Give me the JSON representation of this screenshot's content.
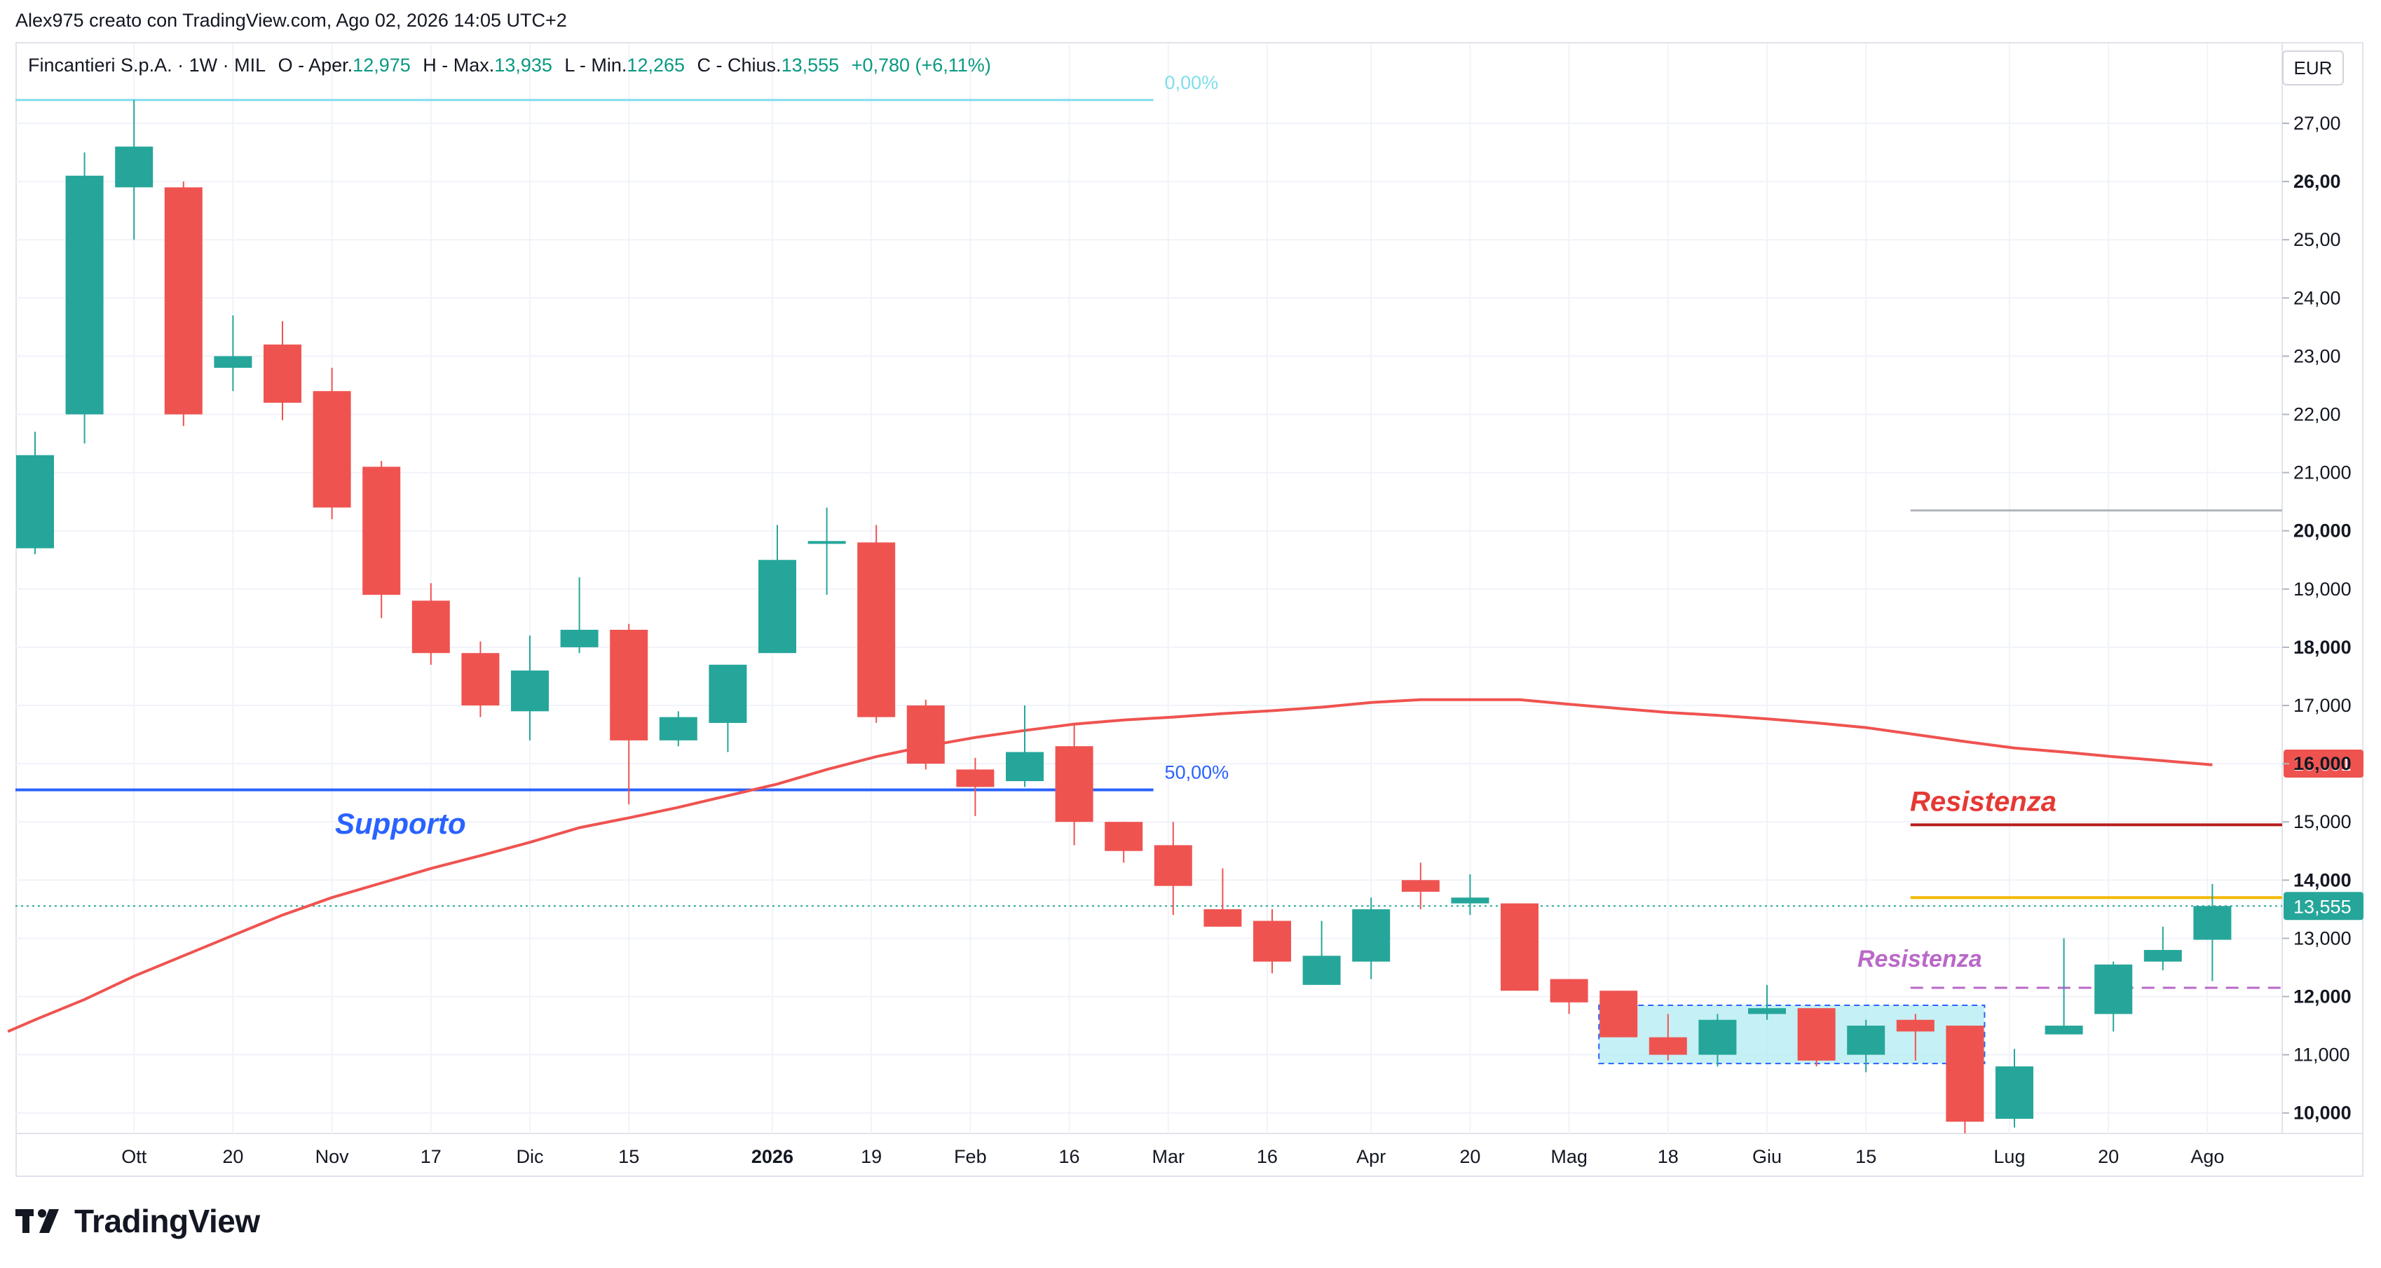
{
  "header": {
    "author": "Alex975 creato con TradingView.com, Ago 02, 2026 14:05 UTC+2"
  },
  "legend": {
    "symbol": "Fincantieri S.p.A. · 1W · MIL",
    "open_label": "O - Aper.",
    "open": "12,975",
    "high_label": "H - Max.",
    "high": "13,935",
    "low_label": "L - Min.",
    "low": "12,265",
    "close_label": "C - Chius.",
    "close": "13,555",
    "change": "+0,780 (+6,11%)"
  },
  "currency_button": "EUR",
  "brand": {
    "name": "TradingView",
    "logo_text": "17"
  },
  "colors": {
    "up": "#26a69a",
    "down": "#ef5350",
    "ma": "#ef5350",
    "support": "#2962ff",
    "resistance_red": "#b71c1c",
    "resistance_orange": "#f5b800",
    "resistance_purple": "#ba68c8",
    "fib0": "#80deea",
    "range_box": "#b2ebf2",
    "price_tag": "#26a69a",
    "ma_tag": "#ef5350"
  },
  "chart_data": {
    "type": "candlestick",
    "period": "1W",
    "symbol": "Fincantieri S.p.A.",
    "exchange": "MIL",
    "currency": "EUR",
    "ylim": [
      9.55,
      27.8
    ],
    "y_ticks": [
      "10,000",
      "11,000",
      "12,000",
      "13,000",
      "14,000",
      "15,000",
      "16,000",
      "17,000",
      "18,000",
      "19,000",
      "20,000",
      "21,000",
      "22,00",
      "23,00",
      "24,00",
      "25,00",
      "26,00",
      "27,00"
    ],
    "y_tick_values": [
      10,
      11,
      12,
      13,
      14,
      15,
      16,
      17,
      18,
      19,
      20,
      21,
      22,
      23,
      24,
      25,
      26,
      27
    ],
    "bold_ticks": [
      10,
      12,
      14,
      16,
      18,
      20,
      26
    ],
    "x_ticks": [
      {
        "label": "Ott",
        "idx": 2
      },
      {
        "label": "20",
        "idx": 4
      },
      {
        "label": "Nov",
        "idx": 6
      },
      {
        "label": "17",
        "idx": 8
      },
      {
        "label": "Dic",
        "idx": 10
      },
      {
        "label": "15",
        "idx": 12
      },
      {
        "label": "2026",
        "idx": 14.9,
        "bold": true
      },
      {
        "label": "19",
        "idx": 16.9
      },
      {
        "label": "Feb",
        "idx": 18.9
      },
      {
        "label": "16",
        "idx": 20.9
      },
      {
        "label": "Mar",
        "idx": 22.9
      },
      {
        "label": "16",
        "idx": 24.9
      },
      {
        "label": "Apr",
        "idx": 27
      },
      {
        "label": "20",
        "idx": 29
      },
      {
        "label": "Mag",
        "idx": 31
      },
      {
        "label": "18",
        "idx": 33
      },
      {
        "label": "Giu",
        "idx": 35
      },
      {
        "label": "15",
        "idx": 37
      },
      {
        "label": "Lug",
        "idx": 39.9
      },
      {
        "label": "20",
        "idx": 41.9
      },
      {
        "label": "Ago",
        "idx": 43.9
      }
    ],
    "candles": [
      {
        "o": 19.7,
        "h": 21.7,
        "l": 19.6,
        "c": 21.3
      },
      {
        "o": 22.0,
        "h": 26.5,
        "l": 21.5,
        "c": 26.1
      },
      {
        "o": 25.9,
        "h": 27.4,
        "l": 25.0,
        "c": 26.6
      },
      {
        "o": 25.9,
        "h": 26.0,
        "l": 21.8,
        "c": 22.0
      },
      {
        "o": 22.8,
        "h": 23.7,
        "l": 22.4,
        "c": 23.0
      },
      {
        "o": 23.2,
        "h": 23.6,
        "l": 21.9,
        "c": 22.2
      },
      {
        "o": 22.4,
        "h": 22.8,
        "l": 20.2,
        "c": 20.4
      },
      {
        "o": 21.1,
        "h": 21.2,
        "l": 18.5,
        "c": 18.9
      },
      {
        "o": 18.8,
        "h": 19.1,
        "l": 17.7,
        "c": 17.9
      },
      {
        "o": 17.9,
        "h": 18.1,
        "l": 16.8,
        "c": 17.0
      },
      {
        "o": 16.9,
        "h": 18.2,
        "l": 16.4,
        "c": 17.6
      },
      {
        "o": 18.0,
        "h": 19.2,
        "l": 17.9,
        "c": 18.3
      },
      {
        "o": 18.3,
        "h": 18.4,
        "l": 15.3,
        "c": 16.4
      },
      {
        "o": 16.4,
        "h": 16.9,
        "l": 16.3,
        "c": 16.8
      },
      {
        "o": 16.7,
        "h": 17.6,
        "l": 16.2,
        "c": 17.7
      },
      {
        "o": 17.9,
        "h": 20.1,
        "l": 17.9,
        "c": 19.5
      },
      {
        "o": 19.8,
        "h": 20.4,
        "l": 18.9,
        "c": 19.8
      },
      {
        "o": 19.8,
        "h": 20.1,
        "l": 16.7,
        "c": 16.8
      },
      {
        "o": 17.0,
        "h": 17.1,
        "l": 15.9,
        "c": 16.0
      },
      {
        "o": 15.9,
        "h": 16.1,
        "l": 15.1,
        "c": 15.6
      },
      {
        "o": 15.7,
        "h": 17.0,
        "l": 15.6,
        "c": 16.2
      },
      {
        "o": 16.3,
        "h": 16.7,
        "l": 14.6,
        "c": 15.0
      },
      {
        "o": 15.0,
        "h": 15.0,
        "l": 14.3,
        "c": 14.5
      },
      {
        "o": 14.6,
        "h": 15.0,
        "l": 13.4,
        "c": 13.9
      },
      {
        "o": 13.5,
        "h": 14.2,
        "l": 13.2,
        "c": 13.2
      },
      {
        "o": 13.3,
        "h": 13.5,
        "l": 12.4,
        "c": 12.6
      },
      {
        "o": 12.2,
        "h": 13.3,
        "l": 12.2,
        "c": 12.7
      },
      {
        "o": 12.6,
        "h": 13.7,
        "l": 12.3,
        "c": 13.5
      },
      {
        "o": 14.0,
        "h": 14.3,
        "l": 13.5,
        "c": 13.8
      },
      {
        "o": 13.6,
        "h": 14.1,
        "l": 13.4,
        "c": 13.7
      },
      {
        "o": 13.6,
        "h": 13.6,
        "l": 12.1,
        "c": 12.1
      },
      {
        "o": 12.3,
        "h": 12.3,
        "l": 11.7,
        "c": 11.9
      },
      {
        "o": 12.1,
        "h": 12.1,
        "l": 11.3,
        "c": 11.3
      },
      {
        "o": 11.3,
        "h": 11.7,
        "l": 10.9,
        "c": 11.0
      },
      {
        "o": 11.0,
        "h": 11.7,
        "l": 10.8,
        "c": 11.6
      },
      {
        "o": 11.7,
        "h": 12.2,
        "l": 11.6,
        "c": 11.8
      },
      {
        "o": 11.8,
        "h": 11.8,
        "l": 10.8,
        "c": 10.9
      },
      {
        "o": 11.0,
        "h": 11.6,
        "l": 10.7,
        "c": 11.5
      },
      {
        "o": 11.6,
        "h": 11.7,
        "l": 10.9,
        "c": 11.4
      },
      {
        "o": 11.5,
        "h": 11.5,
        "l": 9.65,
        "c": 9.85
      },
      {
        "o": 9.9,
        "h": 11.1,
        "l": 9.75,
        "c": 10.8
      },
      {
        "o": 11.35,
        "h": 13.0,
        "l": 11.35,
        "c": 11.5
      },
      {
        "o": 11.7,
        "h": 12.6,
        "l": 11.4,
        "c": 12.55
      },
      {
        "o": 12.6,
        "h": 13.2,
        "l": 12.45,
        "c": 12.8
      },
      {
        "o": 12.975,
        "h": 13.935,
        "l": 12.265,
        "c": 13.555
      }
    ],
    "moving_average": [
      {
        "idx": -0.55,
        "v": 11.4
      },
      {
        "idx": 0,
        "v": 11.6
      },
      {
        "idx": 1,
        "v": 11.95
      },
      {
        "idx": 2,
        "v": 12.35
      },
      {
        "idx": 3,
        "v": 12.7
      },
      {
        "idx": 4,
        "v": 13.05
      },
      {
        "idx": 5,
        "v": 13.4
      },
      {
        "idx": 6,
        "v": 13.7
      },
      {
        "idx": 7,
        "v": 13.95
      },
      {
        "idx": 8,
        "v": 14.2
      },
      {
        "idx": 9,
        "v": 14.42
      },
      {
        "idx": 10,
        "v": 14.65
      },
      {
        "idx": 11,
        "v": 14.9
      },
      {
        "idx": 12,
        "v": 15.07
      },
      {
        "idx": 13,
        "v": 15.25
      },
      {
        "idx": 14,
        "v": 15.45
      },
      {
        "idx": 15,
        "v": 15.65
      },
      {
        "idx": 16,
        "v": 15.9
      },
      {
        "idx": 17,
        "v": 16.12
      },
      {
        "idx": 18,
        "v": 16.3
      },
      {
        "idx": 19,
        "v": 16.45
      },
      {
        "idx": 20,
        "v": 16.57
      },
      {
        "idx": 21,
        "v": 16.68
      },
      {
        "idx": 22,
        "v": 16.75
      },
      {
        "idx": 23,
        "v": 16.8
      },
      {
        "idx": 24,
        "v": 16.86
      },
      {
        "idx": 25,
        "v": 16.91
      },
      {
        "idx": 26,
        "v": 16.97
      },
      {
        "idx": 27,
        "v": 17.05
      },
      {
        "idx": 28,
        "v": 17.1
      },
      {
        "idx": 29,
        "v": 17.1
      },
      {
        "idx": 30,
        "v": 17.1
      },
      {
        "idx": 31,
        "v": 17.02
      },
      {
        "idx": 32,
        "v": 16.95
      },
      {
        "idx": 33,
        "v": 16.88
      },
      {
        "idx": 34,
        "v": 16.83
      },
      {
        "idx": 35,
        "v": 16.77
      },
      {
        "idx": 36,
        "v": 16.7
      },
      {
        "idx": 37,
        "v": 16.62
      },
      {
        "idx": 38,
        "v": 16.5
      },
      {
        "idx": 39,
        "v": 16.38
      },
      {
        "idx": 40,
        "v": 16.27
      },
      {
        "idx": 41,
        "v": 16.2
      },
      {
        "idx": 42,
        "v": 16.12
      },
      {
        "idx": 43,
        "v": 16.05
      },
      {
        "idx": 44,
        "v": 15.98
      }
    ],
    "annotations": {
      "fib_0": {
        "value": 27.4,
        "label": "0,00%",
        "start_idx": -0.6,
        "end_idx": 22.6
      },
      "fib_50": {
        "value": 15.55,
        "label": "50,00%",
        "start_idx": -0.6,
        "end_idx": 22.6
      },
      "support_label": "Supporto",
      "resistance_red": {
        "value": 14.95,
        "label": "Resistenza",
        "start_idx": 37.9
      },
      "resistance_orange": {
        "value": 13.7,
        "start_idx": 37.9
      },
      "resistance_purple": {
        "value": 12.15,
        "label": "Resistenza",
        "start_idx": 37.9
      },
      "grey_line": {
        "value": 20.35,
        "start_idx": 37.9
      },
      "range_box": {
        "top": 11.85,
        "bottom": 10.85,
        "start_idx": 32,
        "end_idx": 39
      },
      "last_price_line": 13.555
    },
    "price_tags": {
      "ma": "16,001",
      "last": "13,555"
    }
  }
}
